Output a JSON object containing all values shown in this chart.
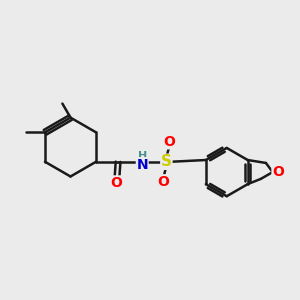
{
  "bg_color": "#ebebeb",
  "bond_color": "#1a1a1a",
  "bond_width": 1.8,
  "atom_colors": {
    "O": "#ff0000",
    "N": "#0000cc",
    "S": "#cccc00",
    "C": "#1a1a1a",
    "H": "#4a9090"
  },
  "font_size": 9,
  "xlim": [
    0,
    10
  ],
  "ylim": [
    0,
    10
  ]
}
